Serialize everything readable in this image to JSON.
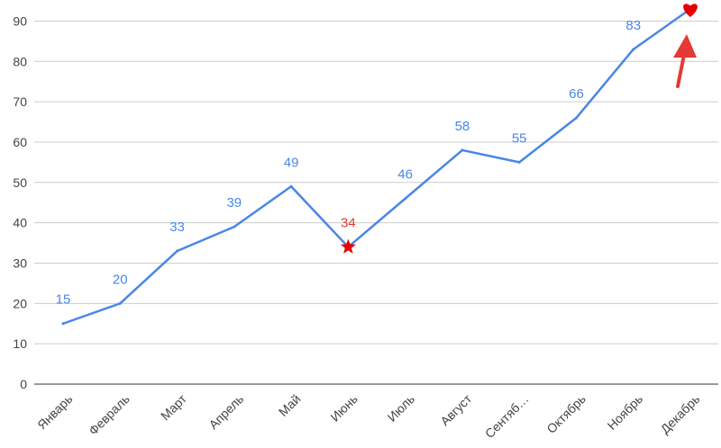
{
  "chart_data": {
    "type": "line",
    "categories": [
      "Январь",
      "Февраль",
      "Март",
      "Апрель",
      "Май",
      "Июнь",
      "Июль",
      "Август",
      "Сентяб…",
      "Октябрь",
      "Ноябрь",
      "Декабрь"
    ],
    "series": [
      {
        "values": [
          15,
          20,
          33,
          39,
          49,
          34,
          46,
          58,
          55,
          66,
          83,
          93
        ],
        "color": "#4a86e8",
        "data_labels": [
          "15",
          "20",
          "33",
          "39",
          "49",
          "34",
          "46",
          "58",
          "55",
          "66",
          "83",
          ""
        ]
      }
    ],
    "ylim": [
      0,
      93
    ],
    "yticks": [
      0,
      10,
      20,
      30,
      40,
      50,
      60,
      70,
      80,
      90
    ],
    "grid": true,
    "highlights": [
      {
        "index": 5,
        "marker": "star",
        "color": "#e60000",
        "label_color": "#e53935"
      },
      {
        "index": 11,
        "marker": "heart",
        "color": "#e60000"
      }
    ],
    "annotations": [
      {
        "type": "arrow",
        "target_index": 11,
        "color": "#e53935"
      }
    ],
    "colors": {
      "line": "#4a86e8",
      "data_label": "#4a86e8",
      "highlight": "#e60000",
      "gridline": "#cccccc",
      "axis_text": "#444444",
      "arrow": "#e53935"
    }
  }
}
